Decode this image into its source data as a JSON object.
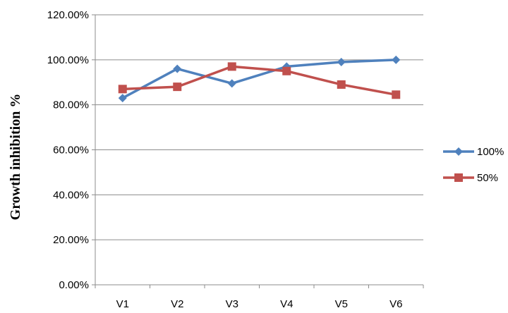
{
  "chart_data": {
    "type": "line",
    "categories": [
      "V1",
      "V2",
      "V3",
      "V4",
      "V5",
      "V6"
    ],
    "series": [
      {
        "name": "100%",
        "values": [
          83.0,
          96.0,
          89.5,
          97.0,
          99.0,
          100.0
        ],
        "color": "#4f81bd",
        "marker": "diamond"
      },
      {
        "name": "50%",
        "values": [
          87.0,
          88.0,
          97.0,
          95.0,
          89.0,
          84.5
        ],
        "color": "#c0504d",
        "marker": "square"
      }
    ],
    "ylabel": "Growth inhibition %",
    "xlabel": "",
    "ylim": [
      0,
      120
    ],
    "ytick_values": [
      0,
      20,
      40,
      60,
      80,
      100,
      120
    ],
    "ytick_labels": [
      "0.00%",
      "20.00%",
      "40.00%",
      "60.00%",
      "80.00%",
      "100.00%",
      "120.00%"
    ],
    "grid": "horizontal",
    "legend_position": "right"
  }
}
